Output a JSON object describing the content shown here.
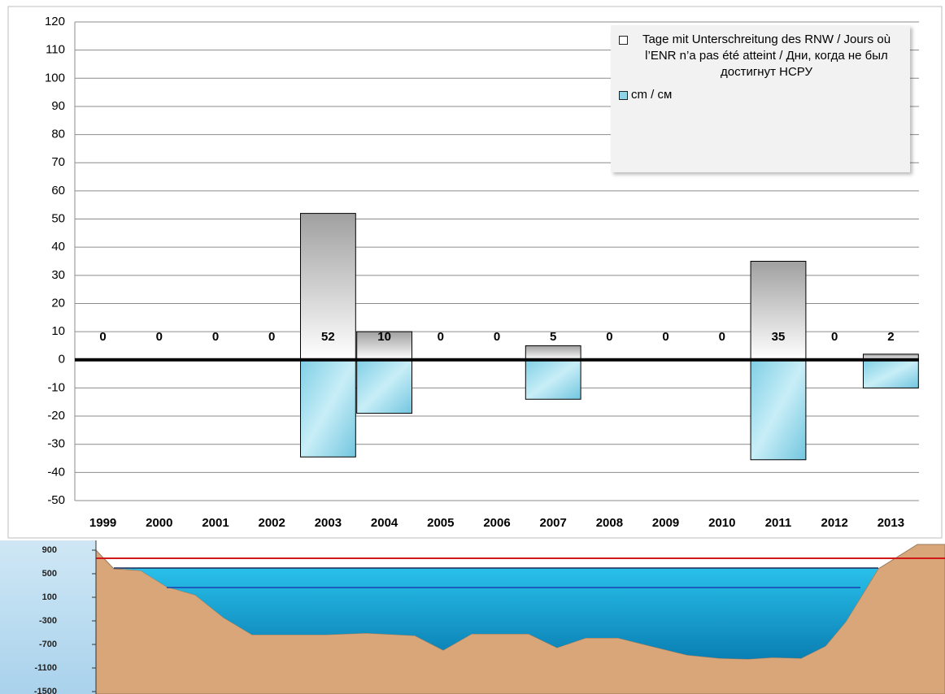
{
  "chart_data": [
    {
      "type": "bar",
      "categories": [
        "1999",
        "2000",
        "2001",
        "2002",
        "2003",
        "2004",
        "2005",
        "2006",
        "2007",
        "2008",
        "2009",
        "2010",
        "2011",
        "2012",
        "2013"
      ],
      "series": [
        {
          "name": "Tage mit Unterschreitung des RNW / Jours où l’ENR n’a pas été atteint / Дни, когда не был достигнут НСРУ",
          "color": "#a6a6a6",
          "values": [
            0,
            0,
            0,
            0,
            52,
            10,
            0,
            0,
            5,
            0,
            0,
            0,
            35,
            0,
            2
          ]
        },
        {
          "name": "cm  / см",
          "color": "#8fd3e8",
          "values": [
            0,
            0,
            0,
            0,
            -34.5,
            -19,
            0,
            0,
            -14,
            0,
            0,
            0,
            -35.5,
            0,
            -10
          ]
        }
      ],
      "ylim": [
        -50,
        120
      ],
      "yticks": [
        -50,
        -40,
        -30,
        -20,
        -10,
        0,
        10,
        20,
        30,
        40,
        50,
        60,
        70,
        80,
        90,
        100,
        110,
        120
      ],
      "grid": true
    },
    {
      "type": "profile",
      "ylim": [
        -1500,
        900
      ],
      "yticks": [
        900,
        500,
        100,
        -300,
        -700,
        -1100,
        -1500
      ]
    }
  ]
}
